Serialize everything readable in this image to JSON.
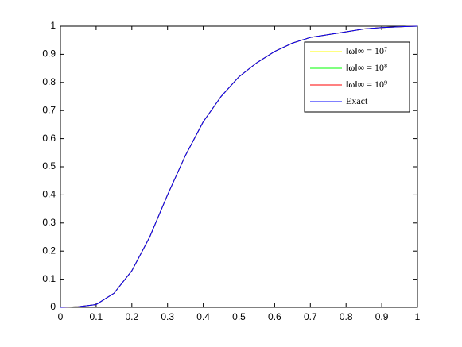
{
  "chart_data": {
    "type": "line",
    "x": [
      0,
      0.05,
      0.1,
      0.15,
      0.2,
      0.25,
      0.3,
      0.35,
      0.4,
      0.45,
      0.5,
      0.55,
      0.6,
      0.65,
      0.7,
      0.75,
      0.8,
      0.85,
      0.9,
      0.95,
      1
    ],
    "series": [
      {
        "name": "‖ω‖∞ = 10⁷",
        "color": "#ffff00",
        "values": [
          0,
          0.002,
          0.01,
          0.05,
          0.13,
          0.25,
          0.4,
          0.54,
          0.66,
          0.75,
          0.82,
          0.87,
          0.91,
          0.94,
          0.96,
          0.97,
          0.98,
          0.99,
          0.995,
          0.998,
          1
        ]
      },
      {
        "name": "‖ω‖∞ = 10⁸",
        "color": "#00ff00",
        "values": [
          0,
          0.002,
          0.01,
          0.05,
          0.13,
          0.25,
          0.4,
          0.54,
          0.66,
          0.75,
          0.82,
          0.87,
          0.91,
          0.94,
          0.96,
          0.97,
          0.98,
          0.99,
          0.995,
          0.998,
          1
        ]
      },
      {
        "name": "‖ω‖∞ = 10⁹",
        "color": "#ff0000",
        "values": [
          0,
          0.002,
          0.01,
          0.05,
          0.13,
          0.25,
          0.4,
          0.54,
          0.66,
          0.75,
          0.82,
          0.87,
          0.91,
          0.94,
          0.96,
          0.97,
          0.98,
          0.99,
          0.995,
          0.998,
          1
        ]
      },
      {
        "name": "Exact",
        "color": "#0000ff",
        "values": [
          0,
          0.002,
          0.01,
          0.05,
          0.13,
          0.25,
          0.4,
          0.54,
          0.66,
          0.75,
          0.82,
          0.87,
          0.91,
          0.94,
          0.96,
          0.97,
          0.98,
          0.99,
          0.995,
          0.998,
          1
        ]
      }
    ],
    "xlim": [
      0,
      1
    ],
    "ylim": [
      0,
      1
    ],
    "xticks": [
      0,
      0.1,
      0.2,
      0.3,
      0.4,
      0.5,
      0.6,
      0.7,
      0.8,
      0.9,
      1
    ],
    "yticks": [
      0,
      0.1,
      0.2,
      0.3,
      0.4,
      0.5,
      0.6,
      0.7,
      0.8,
      0.9,
      1
    ],
    "grid": false,
    "legend": "northeast"
  }
}
